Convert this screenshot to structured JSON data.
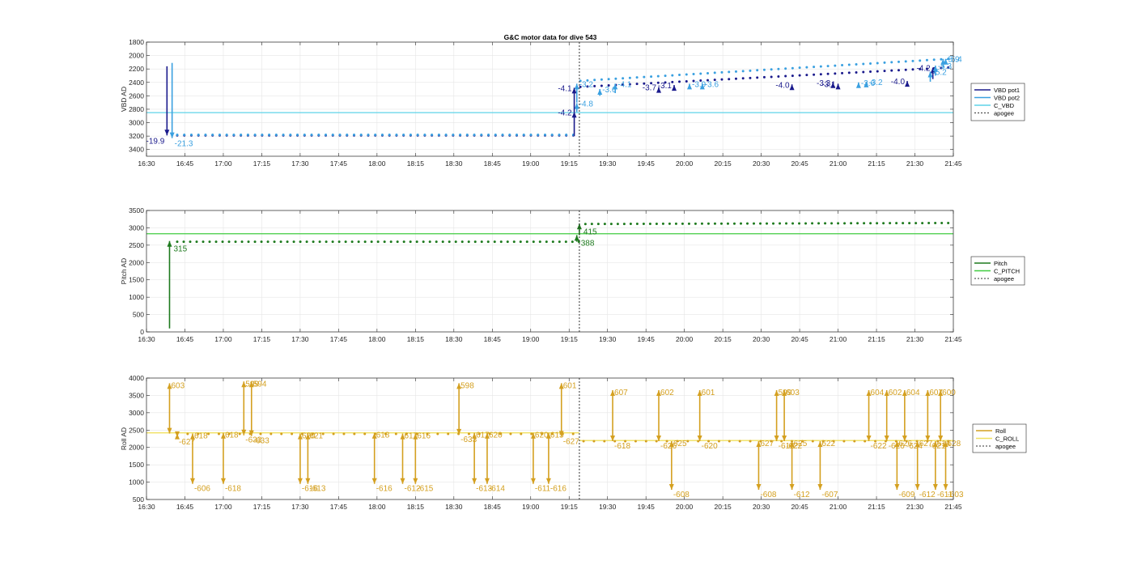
{
  "figure": {
    "title": "G&C motor data for dive 543"
  },
  "legend_items": {
    "vbd": [
      "VBD pot1",
      "VBD pot2",
      "C_VBD",
      "apogee"
    ],
    "pitch": [
      "Pitch",
      "C_PITCH",
      "apogee"
    ],
    "roll": [
      "Roll",
      "C_ROLL",
      "apogee"
    ]
  },
  "colors": {
    "vbd_pot1": "#1a1a8c",
    "vbd_pot2": "#3aa0e0",
    "c_vbd": "#5fd3e8",
    "pitch": "#1e7a1e",
    "c_pitch": "#40cc40",
    "roll": "#d4a020",
    "c_roll": "#f0e060",
    "apogee": "#333333",
    "grid": "#e6e6e6"
  },
  "chart_data": [
    {
      "type": "scatter",
      "title": "G&C motor data for dive 543",
      "xlabel": "",
      "ylabel": "VBD AD",
      "x_ticks": [
        "16:30",
        "16:45",
        "17:00",
        "17:15",
        "17:30",
        "17:45",
        "18:00",
        "18:15",
        "18:30",
        "18:45",
        "19:00",
        "19:15",
        "19:30",
        "19:45",
        "20:00",
        "20:15",
        "20:30",
        "20:45",
        "21:00",
        "21:15",
        "21:30",
        "21:45"
      ],
      "y_ticks": [
        "1800",
        "2000",
        "2200",
        "2400",
        "2600",
        "2800",
        "3000",
        "3200",
        "3400"
      ],
      "xlim": [
        "16:30",
        "21:45"
      ],
      "ylim": [
        1800,
        3500
      ],
      "y_reversed": true,
      "grid": true,
      "legend_placement": "outside-right",
      "constant_lines": [
        {
          "name": "C_VBD",
          "y": 2850
        }
      ],
      "apogee_time": "19:19",
      "pot1_points": {
        "start": "16:42",
        "end": "21:43",
        "count": 110,
        "start_value": 3190,
        "step_time": "19:18",
        "after_step_value": 2470,
        "end_value": 2180
      },
      "pot2_points": {
        "start": "16:42",
        "end": "21:43",
        "count": 110,
        "start_value": 3180,
        "step_time": "19:18",
        "after_step_value": 2380,
        "end_value": 2050
      },
      "motor_events": [
        {
          "time": "16:38",
          "from": 2160,
          "to": 3190,
          "series": "pot1",
          "label": "-19.9"
        },
        {
          "time": "16:40",
          "from": 2110,
          "to": 3230,
          "series": "pot2",
          "label": "-21.3"
        },
        {
          "time": "19:17",
          "from": 3200,
          "to": 2840,
          "series": "pot1",
          "label": "-4.2"
        },
        {
          "time": "19:18",
          "from": 2840,
          "to": 2710,
          "series": "pot2",
          "label": "-4.8"
        },
        {
          "time": "19:17",
          "from": 2840,
          "to": 2480,
          "series": "pot1",
          "label": "-4.1"
        },
        {
          "time": "19:18",
          "from": 2700,
          "to": 2420,
          "series": "pot2",
          "label": "-3.2"
        },
        {
          "time": "19:27",
          "from": 2600,
          "to": 2500,
          "series": "pot2",
          "label": "-3.6"
        },
        {
          "time": "19:33",
          "from": 2560,
          "to": 2420,
          "series": "pot2",
          "label": "-4.1"
        },
        {
          "time": "19:50",
          "from": 2540,
          "to": 2470,
          "series": "pot1",
          "label": "-3.7"
        },
        {
          "time": "19:56",
          "from": 2520,
          "to": 2440,
          "series": "pot1",
          "label": "-3.1"
        },
        {
          "time": "20:02",
          "from": 2500,
          "to": 2420,
          "series": "pot2",
          "label": "-3.9"
        },
        {
          "time": "20:07",
          "from": 2490,
          "to": 2420,
          "series": "pot2",
          "label": "-3.6"
        },
        {
          "time": "20:42",
          "from": 2490,
          "to": 2430,
          "series": "pot1",
          "label": "-4.0"
        },
        {
          "time": "20:58",
          "from": 2470,
          "to": 2400,
          "series": "pot1",
          "label": "-3.3"
        },
        {
          "time": "21:00",
          "from": 2470,
          "to": 2420,
          "series": "pot1",
          "label": "-3.1"
        },
        {
          "time": "21:08",
          "from": 2470,
          "to": 2400,
          "series": "pot2",
          "label": "-3.6"
        },
        {
          "time": "21:11",
          "from": 2460,
          "to": 2390,
          "series": "pot2",
          "label": "-3.2"
        },
        {
          "time": "21:27",
          "from": 2420,
          "to": 2380,
          "series": "pot1",
          "label": "-4.0"
        },
        {
          "time": "21:37",
          "from": 2350,
          "to": 2180,
          "series": "pot1",
          "label": "-4.2"
        },
        {
          "time": "21:36",
          "from": 2390,
          "to": 2240,
          "series": "pot2",
          "label": "-5.2"
        },
        {
          "time": "21:38",
          "from": 2300,
          "to": 2150,
          "series": "pot2",
          "label": "-5.3"
        },
        {
          "time": "21:41",
          "from": 2180,
          "to": 2050,
          "series": "pot2",
          "label": "-5.9"
        },
        {
          "time": "21:42",
          "from": 2120,
          "to": 2050,
          "series": "pot2",
          "label": "-5.4"
        }
      ]
    },
    {
      "type": "scatter",
      "xlabel": "",
      "ylabel": "Pitch AD",
      "x_ticks": [
        "16:30",
        "16:45",
        "17:00",
        "17:15",
        "17:30",
        "17:45",
        "18:00",
        "18:15",
        "18:30",
        "18:45",
        "19:00",
        "19:15",
        "19:30",
        "19:45",
        "20:00",
        "20:15",
        "20:30",
        "20:45",
        "21:00",
        "21:15",
        "21:30",
        "21:45"
      ],
      "y_ticks": [
        "0",
        "500",
        "1000",
        "1500",
        "2000",
        "2500",
        "3000",
        "3500"
      ],
      "xlim": [
        "16:30",
        "21:45"
      ],
      "ylim": [
        0,
        3500
      ],
      "grid": true,
      "legend_placement": "outside-right",
      "constant_lines": [
        {
          "name": "C_PITCH",
          "y": 2830
        }
      ],
      "apogee_time": "19:19",
      "points": {
        "start": "16:42",
        "end": "21:43",
        "count": 120,
        "before_value": 2600,
        "step_time": "19:19",
        "after_value": 3110
      },
      "motor_events": [
        {
          "time": "16:39",
          "from": 100,
          "to": 2620,
          "label": "315"
        },
        {
          "time": "19:18",
          "from": 2600,
          "to": 2790,
          "label": "388"
        },
        {
          "time": "19:19",
          "from": 2790,
          "to": 3120,
          "label": "415"
        }
      ]
    },
    {
      "type": "scatter",
      "xlabel": "",
      "ylabel": "Roll AD",
      "x_ticks": [
        "16:30",
        "16:45",
        "17:00",
        "17:15",
        "17:30",
        "17:45",
        "18:00",
        "18:15",
        "18:30",
        "18:45",
        "19:00",
        "19:15",
        "19:30",
        "19:45",
        "20:00",
        "20:15",
        "20:30",
        "20:45",
        "21:00",
        "21:15",
        "21:30",
        "21:45"
      ],
      "y_ticks": [
        "500",
        "1000",
        "1500",
        "2000",
        "2500",
        "3000",
        "3500",
        "4000"
      ],
      "xlim": [
        "16:30",
        "21:45"
      ],
      "ylim": [
        500,
        4000
      ],
      "grid": true,
      "legend_placement": "outside-right",
      "constant_lines": [
        {
          "name": "C_ROLL",
          "y": 2420,
          "x_start": "16:30",
          "x_end": "19:19"
        },
        {
          "name": "C_ROLL",
          "y": 2200,
          "x_start": "19:19",
          "x_end": "21:45"
        }
      ],
      "apogee_time": "19:19",
      "points": {
        "start": "16:42",
        "end": "21:43",
        "count": 75,
        "before_value": 2390,
        "step_time": "19:19",
        "after_value": 2180
      },
      "roll_events": [
        {
          "time": "16:39",
          "low": 2400,
          "high": 3850,
          "up_label": "603",
          "down_label": ""
        },
        {
          "time": "16:42",
          "low": 2300,
          "high": 2400,
          "up_label": "",
          "down_label": "-627"
        },
        {
          "time": "16:48",
          "low": 950,
          "high": 2400,
          "up_label": "618",
          "down_label": "-606"
        },
        {
          "time": "17:00",
          "low": 950,
          "high": 2420,
          "up_label": "618",
          "down_label": "-618"
        },
        {
          "time": "17:08",
          "low": 2350,
          "high": 3900,
          "up_label": "599",
          "down_label": "-633"
        },
        {
          "time": "17:11",
          "low": 2330,
          "high": 3900,
          "up_label": "594",
          "down_label": "-633"
        },
        {
          "time": "17:30",
          "low": 950,
          "high": 2400,
          "up_label": "620",
          "down_label": "-616"
        },
        {
          "time": "17:33",
          "low": 950,
          "high": 2400,
          "up_label": "621",
          "down_label": "-613"
        },
        {
          "time": "17:59",
          "low": 950,
          "high": 2420,
          "up_label": "618",
          "down_label": "-616"
        },
        {
          "time": "18:10",
          "low": 950,
          "high": 2400,
          "up_label": "617",
          "down_label": "-612"
        },
        {
          "time": "18:15",
          "low": 950,
          "high": 2400,
          "up_label": "616",
          "down_label": "-615"
        },
        {
          "time": "18:32",
          "low": 2370,
          "high": 3850,
          "up_label": "598",
          "down_label": "-633"
        },
        {
          "time": "18:38",
          "low": 950,
          "high": 2420,
          "up_label": "617",
          "down_label": "-613"
        },
        {
          "time": "18:43",
          "low": 950,
          "high": 2420,
          "up_label": "620",
          "down_label": "-614"
        },
        {
          "time": "19:01",
          "low": 950,
          "high": 2420,
          "up_label": "620",
          "down_label": "-611"
        },
        {
          "time": "19:07",
          "low": 950,
          "high": 2420,
          "up_label": "615",
          "down_label": "-616"
        },
        {
          "time": "19:12",
          "low": 2310,
          "high": 3850,
          "up_label": "601",
          "down_label": "-627"
        },
        {
          "time": "19:32",
          "low": 2180,
          "high": 3650,
          "up_label": "607",
          "down_label": "-618"
        },
        {
          "time": "19:50",
          "low": 2180,
          "high": 3650,
          "up_label": "602",
          "down_label": "-626"
        },
        {
          "time": "19:55",
          "low": 780,
          "high": 2180,
          "up_label": "625",
          "down_label": "-608"
        },
        {
          "time": "20:06",
          "low": 2180,
          "high": 3650,
          "up_label": "601",
          "down_label": "-620"
        },
        {
          "time": "20:29",
          "low": 780,
          "high": 2180,
          "up_label": "627",
          "down_label": "-608"
        },
        {
          "time": "20:36",
          "low": 2180,
          "high": 3650,
          "up_label": "599",
          "down_label": "-616"
        },
        {
          "time": "20:39",
          "low": 2180,
          "high": 3650,
          "up_label": "603",
          "down_label": "-622"
        },
        {
          "time": "20:42",
          "low": 780,
          "high": 2180,
          "up_label": "625",
          "down_label": "-612"
        },
        {
          "time": "20:53",
          "low": 780,
          "high": 2180,
          "up_label": "622",
          "down_label": "-607"
        },
        {
          "time": "21:12",
          "low": 2180,
          "high": 3650,
          "up_label": "604",
          "down_label": "-622"
        },
        {
          "time": "21:19",
          "low": 2180,
          "high": 3650,
          "up_label": "602",
          "down_label": "-626"
        },
        {
          "time": "21:23",
          "low": 780,
          "high": 2180,
          "up_label": "626",
          "down_label": "-609"
        },
        {
          "time": "21:26",
          "low": 2180,
          "high": 3650,
          "up_label": "604",
          "down_label": "-624"
        },
        {
          "time": "21:31",
          "low": 780,
          "high": 2180,
          "up_label": "627",
          "down_label": "-612"
        },
        {
          "time": "21:35",
          "low": 2180,
          "high": 3650,
          "up_label": "607",
          "down_label": "-621"
        },
        {
          "time": "21:38",
          "low": 780,
          "high": 2180,
          "up_label": "614",
          "down_label": "-611"
        },
        {
          "time": "21:40",
          "low": 2180,
          "high": 3650,
          "up_label": "600",
          "down_label": ""
        },
        {
          "time": "21:42",
          "low": 780,
          "high": 2180,
          "up_label": "628",
          "down_label": "-603"
        }
      ]
    }
  ]
}
